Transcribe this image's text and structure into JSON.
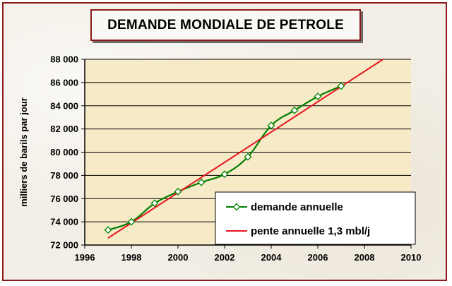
{
  "chart_data": {
    "type": "line",
    "title": "DEMANDE MONDIALE DE PETROLE",
    "xlabel": "",
    "ylabel": "milliers de barils par jour",
    "xlim": [
      1996,
      2010
    ],
    "ylim": [
      72000,
      88000
    ],
    "x_ticks": [
      1996,
      1998,
      2000,
      2002,
      2004,
      2006,
      2008,
      2010
    ],
    "x_tick_labels": [
      "1996",
      "1998",
      "2000",
      "2002",
      "2004",
      "2006",
      "2008",
      "2010"
    ],
    "y_ticks": [
      72000,
      74000,
      76000,
      78000,
      80000,
      82000,
      84000,
      86000,
      88000
    ],
    "y_tick_labels": [
      "72 000",
      "74 000",
      "76 000",
      "78 000",
      "80 000",
      "82 000",
      "84 000",
      "86 000",
      "88 000"
    ],
    "grid": "horizontal",
    "legend_position": "bottom-right",
    "series": [
      {
        "name": "demande annuelle",
        "color": "#008000",
        "marker": "diamond",
        "smooth": true,
        "x": [
          1997,
          1998,
          1999,
          2000,
          2001,
          2002,
          2003,
          2004,
          2005,
          2006,
          2007
        ],
        "y": [
          73300,
          74000,
          75600,
          76600,
          77400,
          78100,
          79600,
          82300,
          83600,
          84800,
          85700
        ]
      },
      {
        "name": "pente annuelle 1,3 mbl/j",
        "color": "#e8141e",
        "marker": "none",
        "smooth": false,
        "x": [
          1997,
          2008.8
        ],
        "y": [
          72600,
          88000
        ]
      }
    ]
  }
}
